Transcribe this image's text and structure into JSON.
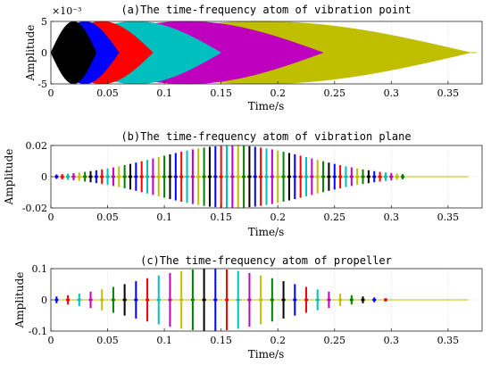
{
  "colors": [
    "#0000ff",
    "#ff0000",
    "#00bfbf",
    "#bf00bf",
    "#bfbf00",
    "#008000",
    "#000000"
  ],
  "chart_data": [
    {
      "type": "line",
      "title": "(a)The time-frequency atom of vibration point",
      "xlabel": "Time/s",
      "ylabel": "Amplitude",
      "xlim": [
        0,
        0.38
      ],
      "ylim": [
        -5,
        5
      ],
      "y_exponent_label": "×10⁻³",
      "xticks": [
        "0",
        "0.05",
        "0.1",
        "0.15",
        "0.2",
        "0.25",
        "0.3",
        "0.35"
      ],
      "yticks": [
        "5",
        "0",
        "-5"
      ],
      "grid": true,
      "series_kind": "envelopes",
      "series": [
        {
          "color": "#000000",
          "start": 0,
          "peak_t": 0.02,
          "end": 0.04,
          "amplitude": 5
        },
        {
          "color": "#0000ff",
          "start": 0,
          "peak_t": 0.03,
          "end": 0.06,
          "amplitude": 5
        },
        {
          "color": "#ff0000",
          "start": 0,
          "peak_t": 0.045,
          "end": 0.09,
          "amplitude": 5
        },
        {
          "color": "#00bfbf",
          "start": 0,
          "peak_t": 0.075,
          "end": 0.15,
          "amplitude": 5
        },
        {
          "color": "#bf00bf",
          "start": 0,
          "peak_t": 0.12,
          "end": 0.24,
          "amplitude": 5
        },
        {
          "color": "#bfbf00",
          "start": 0,
          "peak_t": 0.22,
          "end": 0.37,
          "amplitude": 5
        }
      ]
    },
    {
      "type": "line",
      "title": "(b)The time-frequency atom of vibration plane",
      "xlabel": "Time/s",
      "ylabel": "Amplitude",
      "xlim": [
        0,
        0.38
      ],
      "ylim": [
        -0.02,
        0.02
      ],
      "xticks": [
        "0",
        "0.05",
        "0.1",
        "0.15",
        "0.2",
        "0.25",
        "0.3",
        "0.35"
      ],
      "yticks": [
        "0.02",
        "0",
        "-0.02"
      ],
      "grid": true,
      "series_kind": "bursts",
      "burst_start": 0.005,
      "burst_end": 0.31,
      "burst_count": 62,
      "peak_t": 0.16,
      "peak_amplitude": 0.02
    },
    {
      "type": "line",
      "title": "(c)The time-frequency atom of propeller",
      "xlabel": "Time/s",
      "ylabel": "Amplitude",
      "xlim": [
        0,
        0.38
      ],
      "ylim": [
        -0.1,
        0.1
      ],
      "xticks": [
        "0",
        "0.05",
        "0.1",
        "0.15",
        "0.2",
        "0.25",
        "0.3",
        "0.35"
      ],
      "yticks": [
        "0.1",
        "0",
        "-0.1"
      ],
      "grid": true,
      "series_kind": "bursts",
      "burst_start": 0.005,
      "burst_end": 0.295,
      "burst_count": 30,
      "peak_t": 0.14,
      "peak_amplitude": 0.1
    }
  ]
}
